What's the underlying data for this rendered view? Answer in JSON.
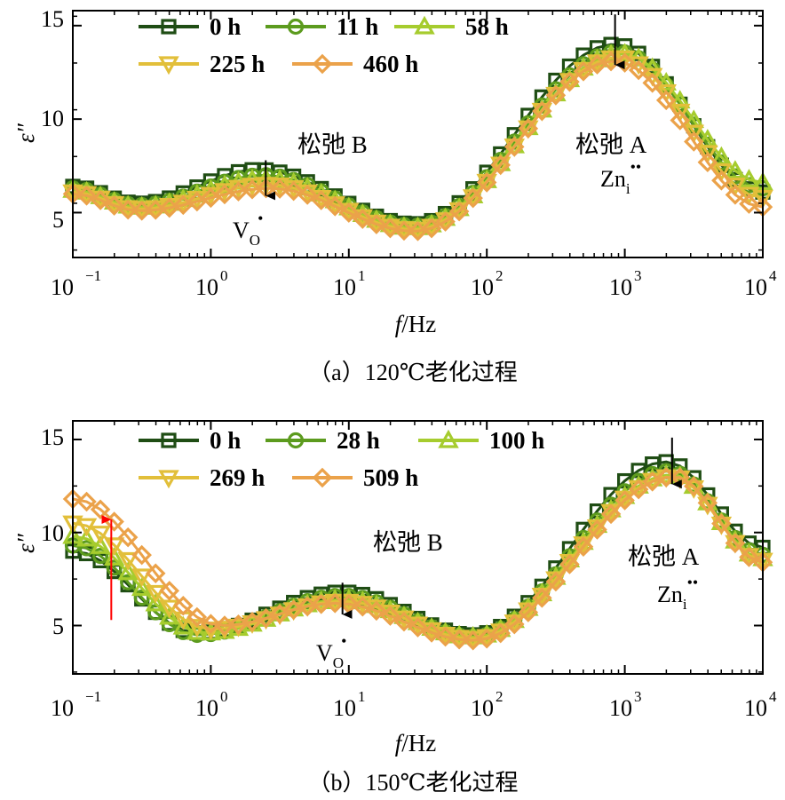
{
  "figure": {
    "colors": {
      "s0": "#1f4d14",
      "s1": "#5c9b1e",
      "s2": "#a6cc2e",
      "s3": "#e2bf3a",
      "s4": "#eba24a",
      "arrow_black": "#000000",
      "arrow_red": "#ff0000"
    }
  },
  "chart_data": [
    {
      "type": "line",
      "caption": "（a）120℃老化过程",
      "xlabel_italic": "f",
      "xlabel_rest": "/Hz",
      "ylabel": "ε″",
      "x_scale": "log",
      "xlim": [
        0.1,
        10000
      ],
      "ylim": [
        2.6,
        15.8
      ],
      "y_ticks": [
        "5",
        "10",
        "15"
      ],
      "x_ticks": [
        {
          "base": "10",
          "exp": "−1"
        },
        {
          "base": "10",
          "exp": "0"
        },
        {
          "base": "10",
          "exp": "1"
        },
        {
          "base": "10",
          "exp": "2"
        },
        {
          "base": "10",
          "exp": "3"
        },
        {
          "base": "10",
          "exp": "4"
        }
      ],
      "legend": [
        {
          "name": "0 h",
          "marker": "square",
          "color_key": "s0"
        },
        {
          "name": "11 h",
          "marker": "circle",
          "color_key": "s1"
        },
        {
          "name": "58 h",
          "marker": "triangle-up",
          "color_key": "s2"
        },
        {
          "name": "225 h",
          "marker": "triangle-down",
          "color_key": "s3"
        },
        {
          "name": "460 h",
          "marker": "diamond",
          "color_key": "s4"
        }
      ],
      "annotations": [
        {
          "text": "松弛 B"
        },
        {
          "text": "松弛 A"
        },
        {
          "text": "V",
          "sub": "O",
          "sup": "•"
        },
        {
          "text": "Zn",
          "sub": "i",
          "sup": "••"
        }
      ],
      "arrows": [
        {
          "x": 2.5,
          "y_from": 7.8,
          "y_to": 5.9,
          "color_key": "arrow_black"
        },
        {
          "x": 850,
          "y_from": 15.6,
          "y_to": 12.9,
          "color_key": "arrow_black"
        }
      ],
      "series": [
        {
          "name": "0 h",
          "peaks": [
            {
              "f": 2.2,
              "v": 7.3
            },
            {
              "f": 850,
              "v": 14.0
            }
          ],
          "minimums": [
            {
              "f": 0.3,
              "v": 5.5
            },
            {
              "f": 30,
              "v": 4.4
            }
          ],
          "edge_left": 6.4,
          "edge_right": 6.1
        },
        {
          "name": "11 h",
          "peaks": [
            {
              "f": 2.4,
              "v": 7.0
            },
            {
              "f": 900,
              "v": 13.6
            }
          ],
          "minimums": [
            {
              "f": 0.3,
              "v": 5.4
            },
            {
              "f": 30,
              "v": 4.3
            }
          ],
          "edge_left": 6.3,
          "edge_right": 6.3
        },
        {
          "name": "58 h",
          "peaks": [
            {
              "f": 2.5,
              "v": 6.8
            },
            {
              "f": 950,
              "v": 13.5
            }
          ],
          "minimums": [
            {
              "f": 0.3,
              "v": 5.3
            },
            {
              "f": 30,
              "v": 4.2
            }
          ],
          "edge_left": 6.2,
          "edge_right": 6.6
        },
        {
          "name": "225 h",
          "peaks": [
            {
              "f": 2.6,
              "v": 6.5
            },
            {
              "f": 900,
              "v": 13.3
            }
          ],
          "minimums": [
            {
              "f": 0.3,
              "v": 5.2
            },
            {
              "f": 30,
              "v": 4.1
            }
          ],
          "edge_left": 6.1,
          "edge_right": 5.8
        },
        {
          "name": "460 h",
          "peaks": [
            {
              "f": 2.7,
              "v": 6.3
            },
            {
              "f": 850,
              "v": 13.1
            }
          ],
          "minimums": [
            {
              "f": 0.3,
              "v": 5.1
            },
            {
              "f": 30,
              "v": 4.0
            }
          ],
          "edge_left": 6.0,
          "edge_right": 5.3
        }
      ]
    },
    {
      "type": "line",
      "caption": "（b）150℃老化过程",
      "xlabel_italic": "f",
      "xlabel_rest": "/Hz",
      "ylabel": "ε″",
      "x_scale": "log",
      "xlim": [
        0.1,
        10000
      ],
      "ylim": [
        2.4,
        16.0
      ],
      "y_ticks": [
        "5",
        "10",
        "15"
      ],
      "x_ticks": [
        {
          "base": "10",
          "exp": "−1"
        },
        {
          "base": "10",
          "exp": "0"
        },
        {
          "base": "10",
          "exp": "1"
        },
        {
          "base": "10",
          "exp": "2"
        },
        {
          "base": "10",
          "exp": "3"
        },
        {
          "base": "10",
          "exp": "4"
        }
      ],
      "legend": [
        {
          "name": "0 h",
          "marker": "square",
          "color_key": "s0"
        },
        {
          "name": "28 h",
          "marker": "circle",
          "color_key": "s1"
        },
        {
          "name": "100 h",
          "marker": "triangle-up",
          "color_key": "s2"
        },
        {
          "name": "269 h",
          "marker": "triangle-down",
          "color_key": "s3"
        },
        {
          "name": "509 h",
          "marker": "diamond",
          "color_key": "s4"
        }
      ],
      "annotations": [
        {
          "text": "松弛 B"
        },
        {
          "text": "松弛 A"
        },
        {
          "text": "V",
          "sub": "O",
          "sup": "•"
        },
        {
          "text": "Zn",
          "sub": "i",
          "sup": "••"
        }
      ],
      "arrows": [
        {
          "x": 0.19,
          "y_from": 5.3,
          "y_to": 10.7,
          "color_key": "arrow_red"
        },
        {
          "x": 9,
          "y_from": 7.3,
          "y_to": 5.6,
          "color_key": "arrow_black"
        },
        {
          "x": 2200,
          "y_from": 15.1,
          "y_to": 12.6,
          "color_key": "arrow_black"
        }
      ],
      "series": [
        {
          "name": "0 h",
          "peaks": [
            {
              "f": 9,
              "v": 6.8
            },
            {
              "f": 2000,
              "v": 13.8
            }
          ],
          "minimums": [
            {
              "f": 0.8,
              "v": 4.6
            },
            {
              "f": 80,
              "v": 4.5
            }
          ],
          "edge_left": 9.0,
          "edge_right": 9.2
        },
        {
          "name": "28 h",
          "peaks": [
            {
              "f": 9,
              "v": 6.6
            },
            {
              "f": 2100,
              "v": 13.3
            }
          ],
          "minimums": [
            {
              "f": 0.8,
              "v": 4.5
            },
            {
              "f": 80,
              "v": 4.4
            }
          ],
          "edge_left": 9.3,
          "edge_right": 8.8
        },
        {
          "name": "100 h",
          "peaks": [
            {
              "f": 9,
              "v": 6.4
            },
            {
              "f": 2200,
              "v": 13.1
            }
          ],
          "minimums": [
            {
              "f": 0.9,
              "v": 4.6
            },
            {
              "f": 80,
              "v": 4.4
            }
          ],
          "edge_left": 9.8,
          "edge_right": 8.6
        },
        {
          "name": "269 h",
          "peaks": [
            {
              "f": 9,
              "v": 6.3
            },
            {
              "f": 2200,
              "v": 13.0
            }
          ],
          "minimums": [
            {
              "f": 1.0,
              "v": 4.8
            },
            {
              "f": 80,
              "v": 4.3
            }
          ],
          "edge_left": 10.5,
          "edge_right": 8.5
        },
        {
          "name": "509 h",
          "peaks": [
            {
              "f": 8,
              "v": 6.2
            },
            {
              "f": 2300,
              "v": 13.0
            }
          ],
          "minimums": [
            {
              "f": 1.2,
              "v": 5.0
            },
            {
              "f": 80,
              "v": 4.2
            }
          ],
          "edge_left": 11.8,
          "edge_right": 8.4
        }
      ]
    }
  ]
}
